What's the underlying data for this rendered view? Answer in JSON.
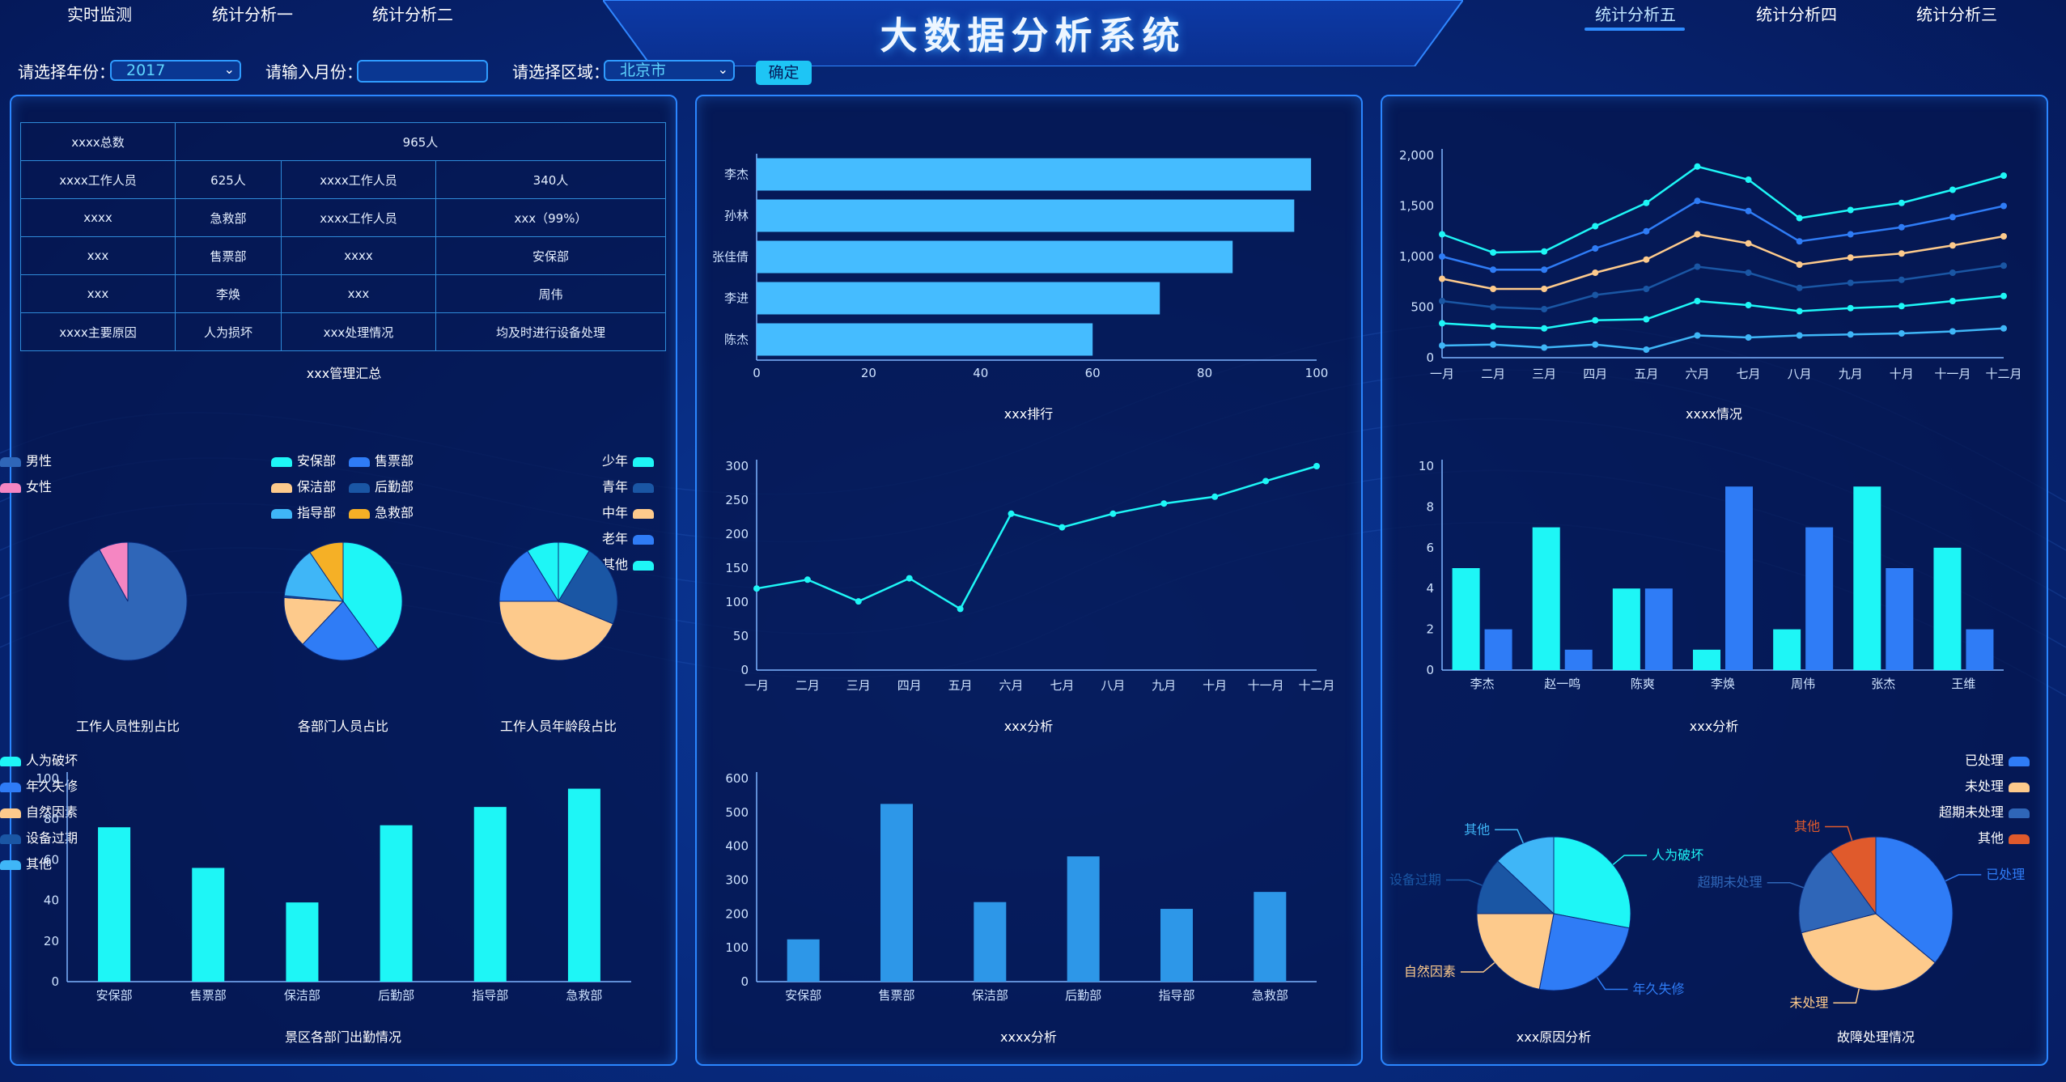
{
  "header": {
    "title": "大数据分析系统",
    "nav_left": [
      "实时监测",
      "统计分析一",
      "统计分析二"
    ],
    "nav_right": [
      "统计分析五",
      "统计分析四",
      "统计分析三"
    ]
  },
  "filters": {
    "year_label": "请选择年份：",
    "year_value": "2017",
    "month_label": "请输入月份：",
    "month_value": "",
    "region_label": "请选择区域：",
    "region_value": "北京市",
    "confirm_label": "确定"
  },
  "colors": {
    "cyan": "#1ef6f6",
    "blue": "#2f7cf6",
    "lightblue": "#3fb6f7",
    "peach": "#fdca8c",
    "steel": "#2f66b8",
    "navy": "#1a56a4",
    "pink": "#f586c2",
    "orange": "#ff9b2f",
    "red": "#e05a2c",
    "bar_blue": "#2d97e8"
  },
  "summary": {
    "r1": [
      "xxxx总数",
      "965人"
    ],
    "r2": [
      "xxxx工作人员",
      "625人",
      "xxxx工作人员",
      "340人"
    ],
    "r3": [
      "xxxx",
      "急救部",
      "xxxx工作人员",
      "xxx（99%）"
    ],
    "r4": [
      "xxx",
      "售票部",
      "xxxx",
      "安保部"
    ],
    "r5": [
      "xxx",
      "李焕",
      "xxx",
      "周伟"
    ],
    "r6": [
      "xxxx主要原因",
      "人为损坏",
      "xxx处理情况",
      "均及时进行设备处理"
    ],
    "caption": "xxx管理汇总"
  },
  "captions": {
    "gender": "工作人员性别占比",
    "dept": "各部门人员占比",
    "age": "工作人员年龄段占比",
    "attendance": "景区各部门出勤情况",
    "rank": "xxx排行",
    "trend": "xxx分析",
    "dept_bar": "xxxx分析",
    "multi_line": "xxxx情况",
    "grouped": "xxx分析",
    "cause": "xxx原因分析",
    "fault": "故障处理情况"
  },
  "chart_data": [
    {
      "id": "gender",
      "type": "pie",
      "labels": [
        "男性",
        "女性"
      ],
      "values": [
        92,
        8
      ],
      "colors": [
        "#2f66b8",
        "#f586c2"
      ]
    },
    {
      "id": "dept",
      "type": "pie",
      "labels": [
        "安保部",
        "售票部",
        "保洁部",
        "后勤部",
        "指导部",
        "急救部"
      ],
      "values": [
        40,
        22,
        14,
        0.5,
        14,
        9.5
      ],
      "colors": [
        "#1ef6f6",
        "#2f7cf6",
        "#fdca8c",
        "#1a56a4",
        "#3fb6f7",
        "#f5b026"
      ]
    },
    {
      "id": "age",
      "type": "pie",
      "labels": [
        "少年",
        "青年",
        "中年",
        "老年",
        "其他"
      ],
      "values": [
        7,
        18,
        35,
        13,
        7
      ],
      "colors": [
        "#1ef6f6",
        "#1a56a4",
        "#fdca8c",
        "#2f7cf6",
        "#1ef6f6"
      ]
    },
    {
      "id": "attendance",
      "type": "bar",
      "categories": [
        "安保部",
        "售票部",
        "保洁部",
        "后勤部",
        "指导部",
        "急救部"
      ],
      "values": [
        76,
        56,
        39,
        77,
        86,
        95
      ],
      "ylim": [
        0,
        100
      ],
      "yticks": [
        0,
        20,
        40,
        60,
        80,
        100
      ]
    },
    {
      "id": "rank",
      "type": "bar",
      "orientation": "horizontal",
      "categories": [
        "李杰",
        "孙林",
        "张佳倩",
        "李进",
        "陈杰"
      ],
      "values": [
        99,
        96,
        85,
        72,
        60
      ],
      "xlim": [
        0,
        100
      ],
      "xticks": [
        0,
        20,
        40,
        60,
        80,
        100
      ]
    },
    {
      "id": "trend",
      "type": "line",
      "x": [
        "一月",
        "二月",
        "三月",
        "四月",
        "五月",
        "六月",
        "七月",
        "八月",
        "九月",
        "十月",
        "十一月",
        "十二月"
      ],
      "values": [
        120,
        133,
        101,
        135,
        90,
        230,
        210,
        230,
        245,
        255,
        278,
        300
      ],
      "ylim": [
        0,
        300
      ],
      "yticks": [
        0,
        50,
        100,
        150,
        200,
        250,
        300
      ]
    },
    {
      "id": "dept_bar",
      "type": "bar",
      "categories": [
        "安保部",
        "售票部",
        "保洁部",
        "后勤部",
        "指导部",
        "急救部"
      ],
      "values": [
        125,
        525,
        235,
        370,
        215,
        265
      ],
      "ylim": [
        0,
        600
      ],
      "yticks": [
        0,
        100,
        200,
        300,
        400,
        500,
        600
      ]
    },
    {
      "id": "multi_line",
      "type": "line",
      "x": [
        "一月",
        "二月",
        "三月",
        "四月",
        "五月",
        "六月",
        "七月",
        "八月",
        "九月",
        "十月",
        "十一月",
        "十二月"
      ],
      "yticks": [
        "0",
        "500",
        "1,000",
        "1,500",
        "2,000"
      ],
      "ylim": [
        0,
        2000
      ],
      "series": [
        {
          "color": "#1ef6f6",
          "values": [
            1220,
            1040,
            1050,
            1300,
            1530,
            1890,
            1760,
            1380,
            1460,
            1530,
            1660,
            1800
          ]
        },
        {
          "color": "#2f7cf6",
          "values": [
            1000,
            870,
            870,
            1080,
            1250,
            1550,
            1450,
            1150,
            1220,
            1290,
            1390,
            1500
          ]
        },
        {
          "color": "#fdca8c",
          "values": [
            780,
            680,
            680,
            840,
            970,
            1220,
            1130,
            920,
            990,
            1030,
            1110,
            1200
          ]
        },
        {
          "color": "#1a56a4",
          "values": [
            560,
            500,
            480,
            620,
            680,
            900,
            840,
            690,
            740,
            770,
            840,
            910
          ]
        },
        {
          "color": "#1ef6f6",
          "values": [
            340,
            310,
            290,
            370,
            380,
            560,
            520,
            460,
            490,
            510,
            560,
            610
          ]
        },
        {
          "color": "#3fb6f7",
          "values": [
            120,
            130,
            100,
            130,
            80,
            220,
            200,
            220,
            230,
            240,
            260,
            290
          ]
        }
      ]
    },
    {
      "id": "grouped",
      "type": "bar",
      "categories": [
        "李杰",
        "赵一鸣",
        "陈爽",
        "李焕",
        "周伟",
        "张杰",
        "王维"
      ],
      "ylim": [
        0,
        10
      ],
      "yticks": [
        0,
        2,
        4,
        6,
        8,
        10
      ],
      "series": [
        {
          "color": "#1ef6f6",
          "values": [
            5,
            7,
            4,
            1,
            2,
            9,
            6
          ]
        },
        {
          "color": "#2f7cf6",
          "values": [
            2,
            1,
            4,
            9,
            7,
            5,
            2
          ]
        }
      ]
    },
    {
      "id": "cause",
      "type": "pie",
      "labels": [
        "人为破坏",
        "年久失修",
        "自然因素",
        "设备过期",
        "其他"
      ],
      "values": [
        28,
        25,
        22,
        12,
        13
      ],
      "colors": [
        "#1ef6f6",
        "#2f7cf6",
        "#fdca8c",
        "#1a56a4",
        "#3fb6f7"
      ]
    },
    {
      "id": "fault",
      "type": "pie",
      "labels": [
        "已处理",
        "未处理",
        "超期未处理",
        "其他"
      ],
      "values": [
        36,
        35,
        19,
        10
      ],
      "colors": [
        "#2f7cf6",
        "#fdca8c",
        "#2f66b8",
        "#e05a2c"
      ]
    }
  ]
}
